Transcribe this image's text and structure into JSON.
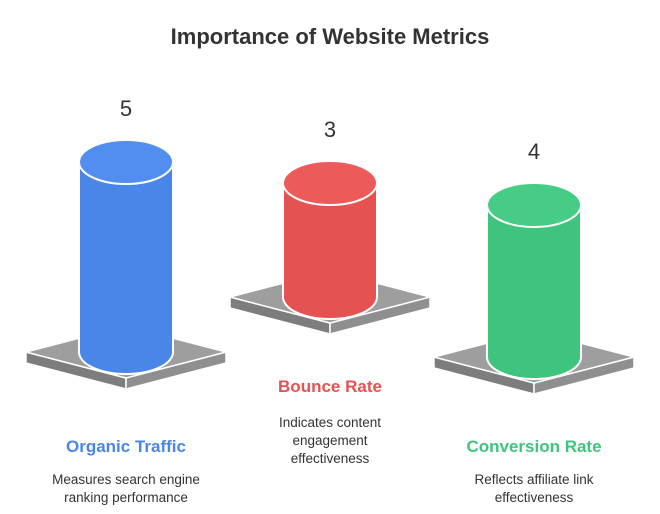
{
  "chart_data": {
    "type": "bar",
    "title": "Importance of Website Metrics",
    "categories": [
      "Organic Traffic",
      "Bounce Rate",
      "Conversion Rate"
    ],
    "values": [
      5,
      3,
      4
    ],
    "descriptions": [
      [
        "Measures search engine",
        "ranking performance"
      ],
      [
        "Indicates content",
        "engagement",
        "effectiveness"
      ],
      [
        "Reflects affiliate link",
        "effectiveness"
      ]
    ],
    "colors": [
      "#4a86e8",
      "#e55252",
      "#3ec47c"
    ],
    "pedestal_color": "#9e9e9e",
    "xlabel": "",
    "ylabel": "",
    "grid": false,
    "legend": "none"
  }
}
